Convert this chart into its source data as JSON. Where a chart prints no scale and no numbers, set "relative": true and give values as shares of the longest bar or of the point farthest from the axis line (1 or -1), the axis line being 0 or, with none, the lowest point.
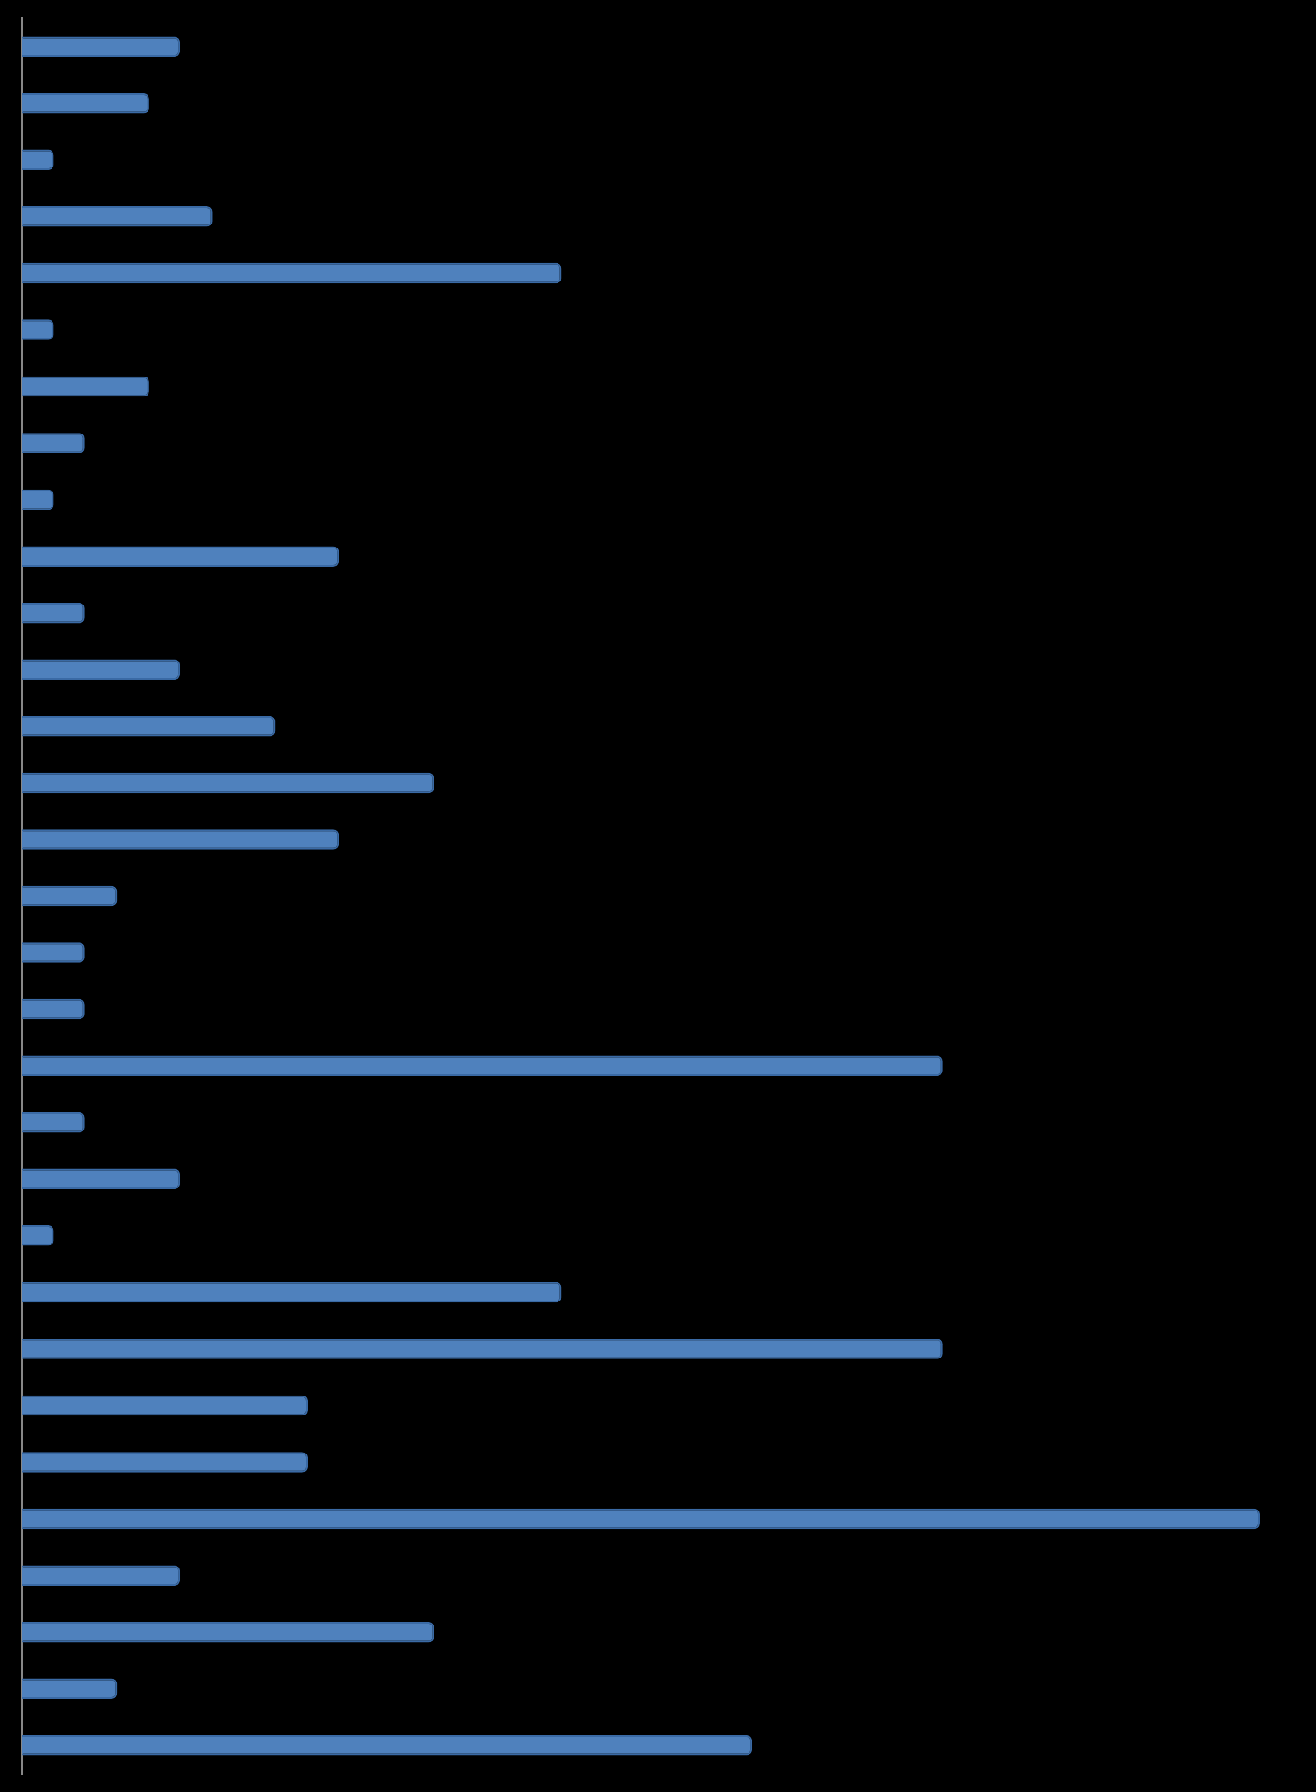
{
  "chart_data": {
    "type": "bar",
    "orientation": "horizontal",
    "relative": true,
    "legend": false,
    "categories": [
      null,
      null,
      null,
      null,
      null,
      null,
      null,
      null,
      null,
      null,
      null,
      null,
      null,
      null,
      null,
      null,
      null,
      null,
      null,
      null,
      null,
      null,
      null,
      null,
      null,
      null,
      null,
      null,
      null,
      null,
      null
    ],
    "color": "#4f81bd",
    "values": [
      0.128,
      0.103,
      0.026,
      0.154,
      0.436,
      0.026,
      0.103,
      0.051,
      0.026,
      0.256,
      0.051,
      0.128,
      0.205,
      0.333,
      0.256,
      0.077,
      0.051,
      0.051,
      0.744,
      0.051,
      0.128,
      0.026,
      0.436,
      0.744,
      0.231,
      0.231,
      1,
      0.128,
      0.333,
      0.077,
      0.59
    ]
  }
}
